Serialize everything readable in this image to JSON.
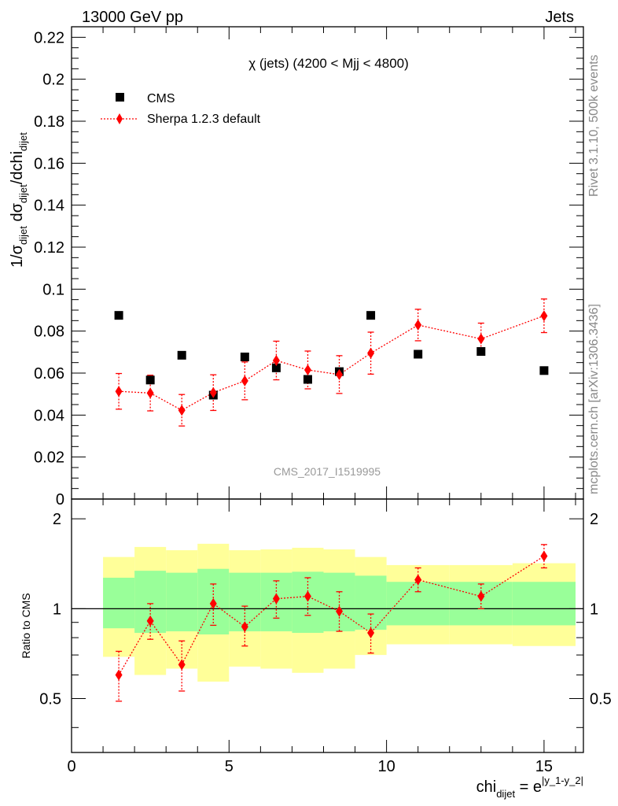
{
  "header": {
    "left": "13000 GeV pp",
    "right": "Jets"
  },
  "side_labels": {
    "rivet": "Rivet 3.1.10,  500k events",
    "mcplots": "mcplots.cern.ch [arXiv:1306.3436]"
  },
  "colors": {
    "data": "#000000",
    "mc": "#ff0000",
    "band_inner": "#99ff99",
    "band_outer": "#ffff99",
    "analysis_label": "#999999"
  },
  "chart_data": [
    {
      "type": "scatter",
      "title": "χ (jets) (4200 < Mjj < 4800)",
      "analysis_id": "CMS_2017_I1519995",
      "ylabel": "1/σdijet dσdijet/dchidijet",
      "xlabel": "chidijet = e^|y_1-y_2|",
      "xlim": [
        0,
        16.25
      ],
      "ylim": [
        0,
        0.225
      ],
      "yticks": [
        "0",
        "0.02",
        "0.04",
        "0.06",
        "0.08",
        "0.1",
        "0.12",
        "0.14",
        "0.16",
        "0.18",
        "0.2",
        "0.22"
      ],
      "ytick_values": [
        0,
        0.02,
        0.04,
        0.06,
        0.08,
        0.1,
        0.12,
        0.14,
        0.16,
        0.18,
        0.2,
        0.22
      ],
      "legend": [
        "CMS",
        "Sherpa 1.2.3 default"
      ],
      "series": [
        {
          "name": "CMS",
          "x": [
            1.5,
            2.5,
            3.5,
            4.5,
            5.5,
            6.5,
            7.5,
            8.5,
            9.5,
            11,
            13,
            15
          ],
          "y": [
            0.0875,
            0.0567,
            0.0685,
            0.0495,
            0.0677,
            0.0625,
            0.057,
            0.0607,
            0.0875,
            0.069,
            0.0703,
            0.0612
          ]
        },
        {
          "name": "Sherpa 1.2.3 default",
          "x": [
            1.5,
            2.5,
            3.5,
            4.5,
            5.5,
            6.5,
            7.5,
            8.5,
            9.5,
            11,
            13,
            15
          ],
          "y": [
            0.0513,
            0.0505,
            0.0423,
            0.0507,
            0.0563,
            0.066,
            0.0615,
            0.0593,
            0.0695,
            0.0829,
            0.0763,
            0.0873
          ],
          "err": [
            0.0085,
            0.0085,
            0.0075,
            0.0085,
            0.009,
            0.0092,
            0.009,
            0.009,
            0.01,
            0.0075,
            0.0075,
            0.008
          ]
        }
      ]
    },
    {
      "type": "scatter",
      "ylabel": "Ratio to CMS",
      "xlabel": "chidijet = e^|y_1-y_2|",
      "xlim": [
        0,
        16.25
      ],
      "ylim": [
        0.33,
        2.33
      ],
      "yticks": [
        "0.5",
        "1",
        "2"
      ],
      "ytick_values": [
        0.5,
        1,
        2
      ],
      "xticks": [
        "0",
        "5",
        "10",
        "15"
      ],
      "xtick_values": [
        0,
        5,
        10,
        15
      ],
      "bins": [
        [
          1,
          2
        ],
        [
          2,
          3
        ],
        [
          3,
          4
        ],
        [
          4,
          5
        ],
        [
          5,
          6
        ],
        [
          6,
          7
        ],
        [
          7,
          8
        ],
        [
          8,
          9
        ],
        [
          9,
          10
        ],
        [
          10,
          12
        ],
        [
          12,
          14
        ],
        [
          14,
          16
        ]
      ],
      "band_inner": [
        [
          0.86,
          1.27
        ],
        [
          0.83,
          1.34
        ],
        [
          0.84,
          1.32
        ],
        [
          0.82,
          1.36
        ],
        [
          0.84,
          1.32
        ],
        [
          0.84,
          1.32
        ],
        [
          0.83,
          1.33
        ],
        [
          0.84,
          1.32
        ],
        [
          0.85,
          1.29
        ],
        [
          0.88,
          1.23
        ],
        [
          0.88,
          1.23
        ],
        [
          0.88,
          1.23
        ]
      ],
      "band_outer": [
        [
          0.69,
          1.49
        ],
        [
          0.6,
          1.61
        ],
        [
          0.63,
          1.57
        ],
        [
          0.57,
          1.65
        ],
        [
          0.64,
          1.57
        ],
        [
          0.63,
          1.58
        ],
        [
          0.61,
          1.6
        ],
        [
          0.63,
          1.58
        ],
        [
          0.7,
          1.49
        ],
        [
          0.76,
          1.4
        ],
        [
          0.76,
          1.4
        ],
        [
          0.75,
          1.42
        ]
      ],
      "series": [
        {
          "name": "Sherpa 1.2.3 default",
          "x": [
            1.5,
            2.5,
            3.5,
            4.5,
            5.5,
            6.5,
            7.5,
            8.5,
            9.5,
            11,
            13,
            15
          ],
          "y": [
            0.6,
            0.91,
            0.65,
            1.04,
            0.87,
            1.08,
            1.1,
            0.98,
            0.83,
            1.25,
            1.1,
            1.5
          ],
          "err_low": [
            0.11,
            0.12,
            0.12,
            0.16,
            0.12,
            0.15,
            0.15,
            0.14,
            0.12,
            0.11,
            0.1,
            0.13
          ],
          "err_high": [
            0.12,
            0.13,
            0.13,
            0.17,
            0.15,
            0.16,
            0.17,
            0.16,
            0.13,
            0.12,
            0.11,
            0.14
          ]
        }
      ]
    }
  ]
}
